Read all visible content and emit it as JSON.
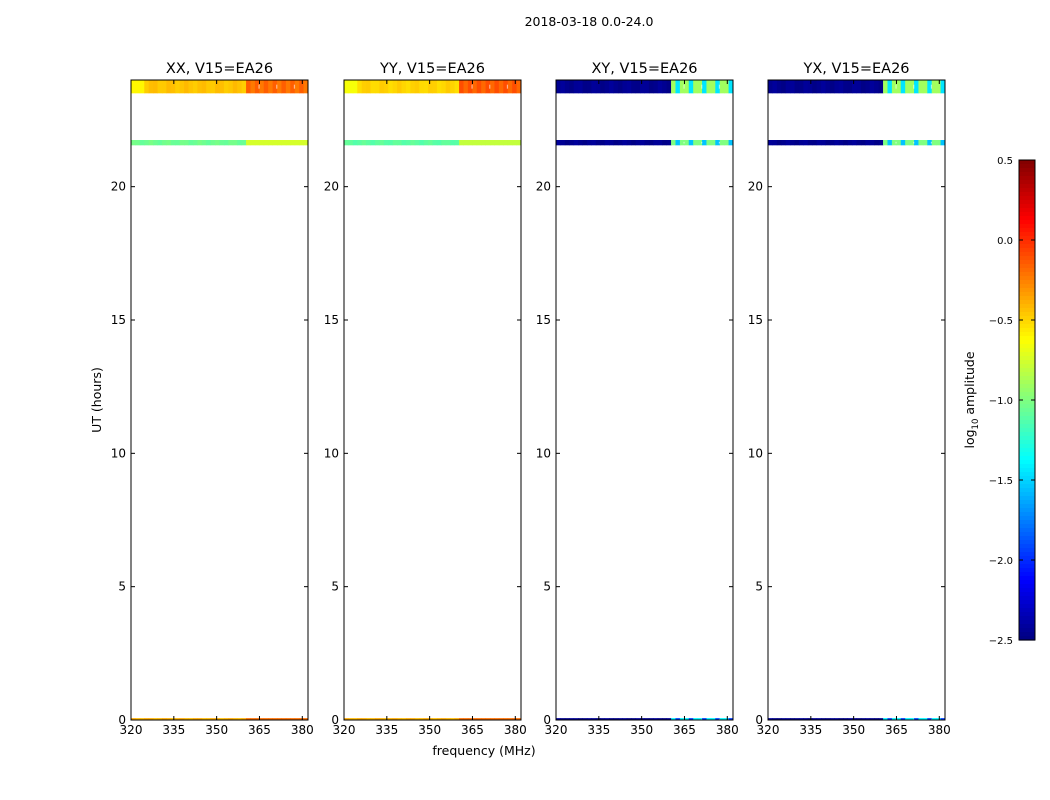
{
  "figure_title": "2018-03-18 0.0-24.0",
  "colors": {
    "panel_edge": "#000000",
    "white_cell": "#ffffff"
  },
  "chart_data": [
    {
      "type": "heatmap",
      "title": "XX, V15=EA26",
      "xlabel": "",
      "ylabel": "UT (hours)",
      "xlim": [
        320,
        382
      ],
      "ylim": [
        0,
        24
      ],
      "xticks": [
        "320",
        "335",
        "350",
        "365",
        "380"
      ],
      "yticks": [
        "0",
        "5",
        "10",
        "15",
        "20"
      ],
      "colormap": "jet",
      "rows": [
        {
          "t0": 23.5,
          "t1": 24.0,
          "base": -0.45,
          "high": -0.15,
          "pattern": "strong"
        },
        {
          "t0": 21.55,
          "t1": 21.75,
          "base": -1.05,
          "high": -0.75,
          "pattern": "weak"
        },
        {
          "t0": 0.0,
          "t1": 0.07,
          "base": -0.4,
          "high": -0.2,
          "pattern": "weak"
        }
      ]
    },
    {
      "type": "heatmap",
      "title": "YY, V15=EA26",
      "xlabel": "frequency (MHz)",
      "ylabel": "",
      "xlim": [
        320,
        382
      ],
      "ylim": [
        0,
        24
      ],
      "xticks": [
        "320",
        "335",
        "350",
        "365",
        "380"
      ],
      "yticks": [
        "0",
        "5",
        "10",
        "15",
        "20"
      ],
      "colormap": "jet",
      "rows": [
        {
          "t0": 23.5,
          "t1": 24.0,
          "base": -0.5,
          "high": -0.1,
          "pattern": "strong"
        },
        {
          "t0": 21.55,
          "t1": 21.75,
          "base": -1.1,
          "high": -0.8,
          "pattern": "weak"
        },
        {
          "t0": 0.0,
          "t1": 0.07,
          "base": -0.4,
          "high": -0.2,
          "pattern": "weak"
        }
      ]
    },
    {
      "type": "heatmap",
      "title": "XY, V15=EA26",
      "xlabel": "",
      "ylabel": "",
      "xlim": [
        320,
        382
      ],
      "ylim": [
        0,
        24
      ],
      "xticks": [
        "320",
        "335",
        "350",
        "365",
        "380"
      ],
      "yticks": [
        "0",
        "5",
        "10",
        "15",
        "20"
      ],
      "colormap": "jet",
      "rows": [
        {
          "t0": 23.5,
          "t1": 24.0,
          "base": -2.45,
          "high": -0.9,
          "pattern": "cross"
        },
        {
          "t0": 21.55,
          "t1": 21.75,
          "base": -2.45,
          "high": -1.0,
          "pattern": "cross"
        },
        {
          "t0": 0.0,
          "t1": 0.07,
          "base": -2.45,
          "high": -1.4,
          "pattern": "cross"
        }
      ]
    },
    {
      "type": "heatmap",
      "title": "YX, V15=EA26",
      "xlabel": "",
      "ylabel": "",
      "xlim": [
        320,
        382
      ],
      "ylim": [
        0,
        24
      ],
      "xticks": [
        "320",
        "335",
        "350",
        "365",
        "380"
      ],
      "yticks": [
        "0",
        "5",
        "10",
        "15",
        "20"
      ],
      "colormap": "jet",
      "rows": [
        {
          "t0": 23.5,
          "t1": 24.0,
          "base": -2.45,
          "high": -0.9,
          "pattern": "cross"
        },
        {
          "t0": 21.55,
          "t1": 21.75,
          "base": -2.45,
          "high": -1.0,
          "pattern": "cross"
        },
        {
          "t0": 0.0,
          "t1": 0.07,
          "base": -2.45,
          "high": -1.4,
          "pattern": "cross"
        }
      ]
    }
  ],
  "colorbar": {
    "label_prefix": "log",
    "label_sub": "10",
    "label_suffix": " amplitude",
    "range": [
      -2.5,
      0.5
    ],
    "ticks": [
      "0.5",
      "0.0",
      "−0.5",
      "−1.0",
      "−1.5",
      "−2.0",
      "−2.5"
    ]
  }
}
